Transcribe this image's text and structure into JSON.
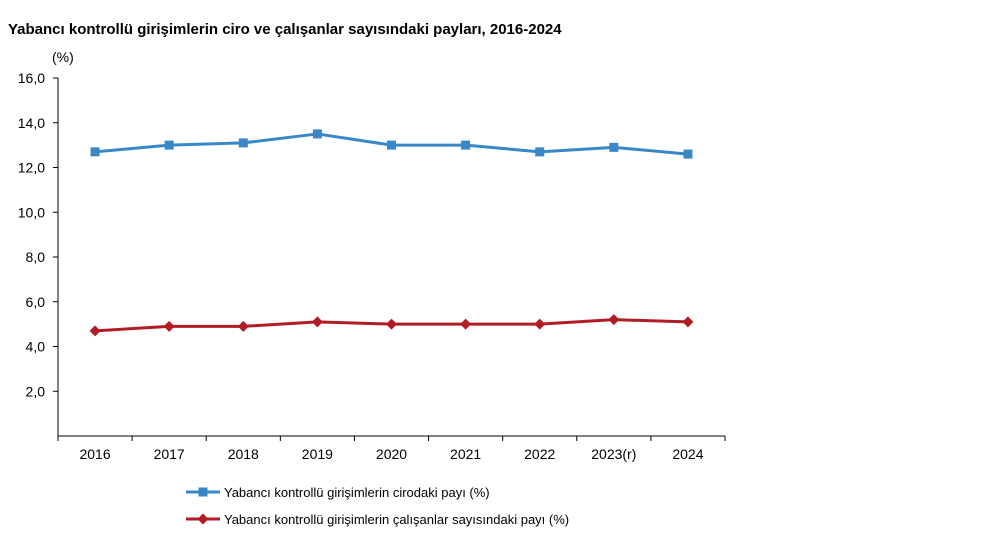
{
  "chart_data": {
    "type": "line",
    "title": "Yabancı kontrollü girişimlerin ciro ve çalışanlar sayısındaki payları, 2016-2024",
    "ylabel": "(%)",
    "xlabel": "",
    "categories": [
      "2016",
      "2017",
      "2018",
      "2019",
      "2020",
      "2021",
      "2022",
      "2023(r)",
      "2024"
    ],
    "ylim": [
      0,
      16
    ],
    "yticks": [
      "2,0",
      "4,0",
      "6,0",
      "8,0",
      "10,0",
      "12,0",
      "14,0",
      "16,0"
    ],
    "ytick_values": [
      2,
      4,
      6,
      8,
      10,
      12,
      14,
      16
    ],
    "grid": false,
    "legend_position": "bottom",
    "series": [
      {
        "name": "Yabancı kontrollü girişimlerin cirodaki payı (%)",
        "color": "#3a87c8",
        "marker": "square",
        "values": [
          12.7,
          13.0,
          13.1,
          13.5,
          13.0,
          13.0,
          12.7,
          12.9,
          12.6
        ]
      },
      {
        "name": "Yabancı kontrollü girişimlerin çalışanlar sayısındaki payı (%)",
        "color": "#b21d24",
        "marker": "diamond",
        "values": [
          4.7,
          4.9,
          4.9,
          5.1,
          5.0,
          5.0,
          5.0,
          5.2,
          5.1
        ]
      }
    ]
  }
}
